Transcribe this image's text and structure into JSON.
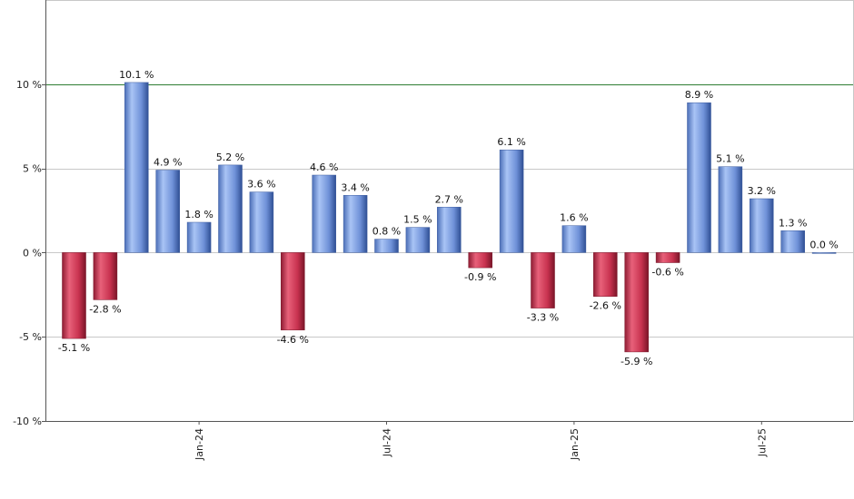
{
  "chart_data": {
    "type": "bar",
    "title": "",
    "xlabel": "",
    "ylabel": "",
    "ylim": [
      -10,
      15
    ],
    "y_ticks": [
      -10,
      -5,
      0,
      5,
      10
    ],
    "y_tick_labels": [
      "-10 %",
      "-5 %",
      "0 %",
      "5 %",
      "10 %"
    ],
    "highlight_line": {
      "value": 10,
      "color": "#2e7d32"
    },
    "x_tick_labels": [
      {
        "label": "Jan-24",
        "index": 4
      },
      {
        "label": "Jul-24",
        "index": 10
      },
      {
        "label": "Jan-25",
        "index": 16
      },
      {
        "label": "Jul-25",
        "index": 22
      }
    ],
    "values": [
      -5.1,
      -2.8,
      10.1,
      4.9,
      1.8,
      5.2,
      3.6,
      -4.6,
      4.6,
      3.4,
      0.8,
      1.5,
      2.7,
      -0.9,
      6.1,
      -3.3,
      1.6,
      -2.6,
      -5.9,
      -0.6,
      8.9,
      5.1,
      3.2,
      1.3,
      0.0
    ],
    "data_labels": [
      "-5.1 %",
      "-2.8 %",
      "10.1 %",
      "4.9 %",
      "1.8 %",
      "5.2 %",
      "3.6 %",
      "-4.6 %",
      "4.6 %",
      "3.4 %",
      "0.8 %",
      "1.5 %",
      "2.7 %",
      "-0.9 %",
      "6.1 %",
      "-3.3 %",
      "1.6 %",
      "-2.6 %",
      "-5.9 %",
      "-0.6 %",
      "8.9 %",
      "5.1 %",
      "3.2 %",
      "1.3 %",
      "0.0 %"
    ],
    "grid": true,
    "colors": {
      "positive": "#6b8fd6",
      "negative": "#c8324f"
    }
  }
}
